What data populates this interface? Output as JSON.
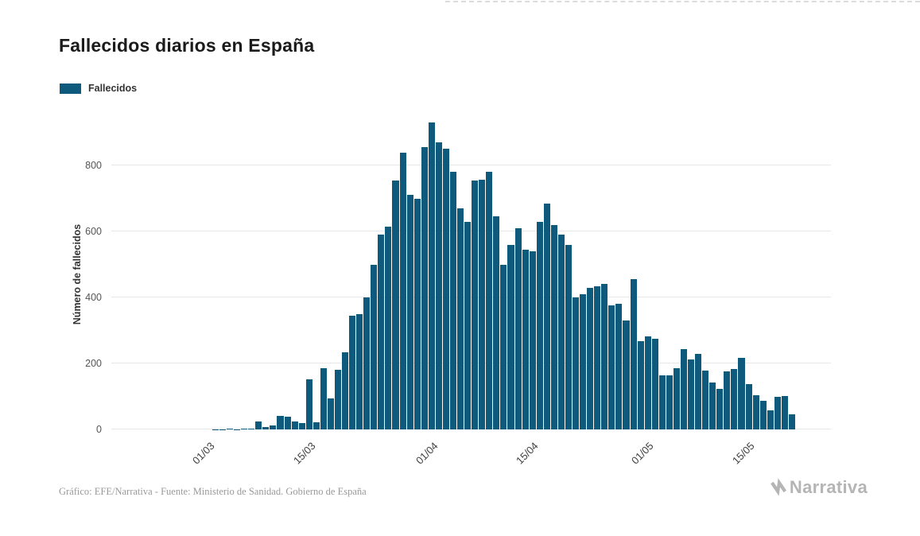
{
  "page": {
    "title": "Fallecidos diarios en España",
    "legend": {
      "label": "Fallecidos"
    },
    "footer": {
      "credit": "Gráfico: EFE/Narrativa - Fuente: Ministerio de Sanidad. Gobierno de España",
      "brand": "Narrativa"
    }
  },
  "chart_data": {
    "type": "bar",
    "title": "Fallecidos diarios en España",
    "series_name": "Fallecidos",
    "xlabel": "",
    "ylabel": "Número de fallecidos",
    "ylim": [
      0,
      940
    ],
    "yticks": [
      0,
      200,
      400,
      600,
      800
    ],
    "xticks": [
      "01/03",
      "15/03",
      "01/04",
      "15/04",
      "01/05",
      "15/05"
    ],
    "grid": true,
    "legend_position": "top-left",
    "bar_color": "#0e5a7d",
    "grid_color": "#e7e7e7",
    "categories": [
      "17/02",
      "18/02",
      "19/02",
      "20/02",
      "21/02",
      "22/02",
      "23/02",
      "24/02",
      "25/02",
      "26/02",
      "27/02",
      "28/02",
      "29/02",
      "01/03",
      "02/03",
      "03/03",
      "04/03",
      "05/03",
      "06/03",
      "07/03",
      "08/03",
      "09/03",
      "10/03",
      "11/03",
      "12/03",
      "13/03",
      "14/03",
      "15/03",
      "16/03",
      "17/03",
      "18/03",
      "19/03",
      "20/03",
      "21/03",
      "22/03",
      "23/03",
      "24/03",
      "25/03",
      "26/03",
      "27/03",
      "28/03",
      "29/03",
      "30/03",
      "31/03",
      "01/04",
      "02/04",
      "03/04",
      "04/04",
      "05/04",
      "06/04",
      "07/04",
      "08/04",
      "09/04",
      "10/04",
      "11/04",
      "12/04",
      "13/04",
      "14/04",
      "15/04",
      "16/04",
      "17/04",
      "18/04",
      "19/04",
      "20/04",
      "21/04",
      "22/04",
      "23/04",
      "24/04",
      "25/04",
      "26/04",
      "27/04",
      "28/04",
      "29/04",
      "30/04",
      "01/05",
      "02/05",
      "03/05",
      "04/05",
      "05/05",
      "06/05",
      "07/05",
      "08/05",
      "09/05",
      "10/05",
      "11/05",
      "12/05",
      "13/05",
      "14/05",
      "15/05",
      "16/05",
      "17/05",
      "18/05",
      "19/05",
      "20/05",
      "21/05",
      "22/05",
      "23/05",
      "24/05",
      "25/05",
      "26/05"
    ],
    "values": [
      0,
      0,
      0,
      0,
      0,
      0,
      0,
      0,
      0,
      0,
      0,
      0,
      0,
      0,
      1,
      1,
      2,
      1,
      2,
      3,
      23,
      8,
      12,
      40,
      38,
      25,
      20,
      152,
      21,
      185,
      95,
      180,
      235,
      345,
      350,
      400,
      500,
      590,
      615,
      755,
      840,
      710,
      700,
      855,
      930,
      870,
      850,
      780,
      670,
      630,
      755,
      757,
      780,
      645,
      500,
      560,
      610,
      545,
      540,
      630,
      685,
      620,
      590,
      560,
      400,
      410,
      430,
      435,
      440,
      375,
      380,
      330,
      455,
      268,
      281,
      276,
      164,
      164,
      185,
      244,
      213,
      229,
      179,
      143,
      123,
      176,
      184,
      217,
      138,
      104,
      87,
      59,
      100,
      102,
      45,
      0,
      0,
      0,
      0,
      0
    ]
  }
}
